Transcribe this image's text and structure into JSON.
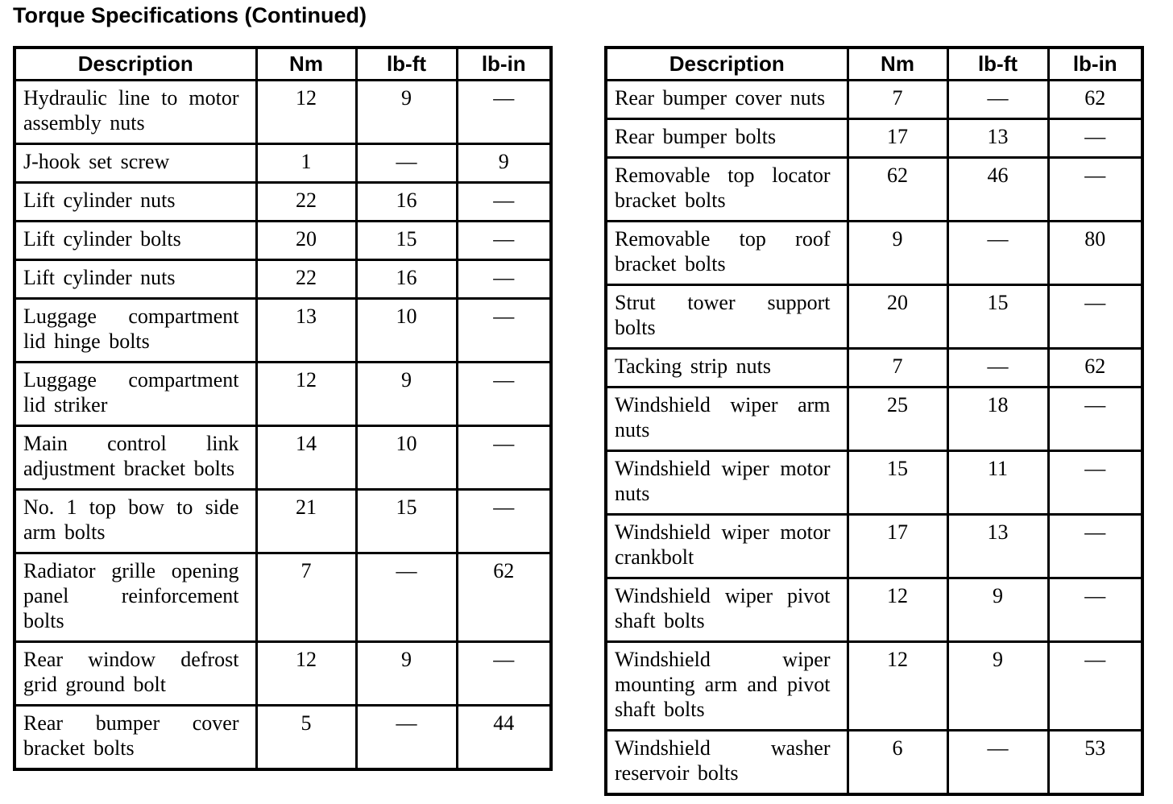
{
  "page_title": "Torque Specifications (Continued)",
  "colors": {
    "background": "#ffffff",
    "text": "#000000",
    "table_border": "#000000"
  },
  "tables": [
    {
      "id": "torque-table-left",
      "headers": [
        "Description",
        "Nm",
        "lb-ft",
        "lb-in"
      ],
      "rows": [
        {
          "description": "Hydraulic line to motor assembly nuts",
          "nm": "12",
          "lb_ft": "9",
          "lb_in": "—"
        },
        {
          "description": "J-hook set screw",
          "nm": "1",
          "lb_ft": "—",
          "lb_in": "9"
        },
        {
          "description": "Lift cylinder nuts",
          "nm": "22",
          "lb_ft": "16",
          "lb_in": "—"
        },
        {
          "description": "Lift cylinder bolts",
          "nm": "20",
          "lb_ft": "15",
          "lb_in": "—"
        },
        {
          "description": "Lift cylinder nuts",
          "nm": "22",
          "lb_ft": "16",
          "lb_in": "—"
        },
        {
          "description": "Luggage compartment lid hinge bolts",
          "nm": "13",
          "lb_ft": "10",
          "lb_in": "—"
        },
        {
          "description": "Luggage compartment lid striker",
          "nm": "12",
          "lb_ft": "9",
          "lb_in": "—"
        },
        {
          "description": "Main control link adjustment bracket bolts",
          "nm": "14",
          "lb_ft": "10",
          "lb_in": "—"
        },
        {
          "description": "No. 1 top bow to side arm bolts",
          "nm": "21",
          "lb_ft": "15",
          "lb_in": "—"
        },
        {
          "description": "Radiator grille opening panel reinforcement bolts",
          "nm": "7",
          "lb_ft": "—",
          "lb_in": "62"
        },
        {
          "description": "Rear window defrost grid ground bolt",
          "nm": "12",
          "lb_ft": "9",
          "lb_in": "—"
        },
        {
          "description": "Rear bumper cover bracket bolts",
          "nm": "5",
          "lb_ft": "—",
          "lb_in": "44"
        }
      ]
    },
    {
      "id": "torque-table-right",
      "headers": [
        "Description",
        "Nm",
        "lb-ft",
        "lb-in"
      ],
      "rows": [
        {
          "description": "Rear bumper cover nuts",
          "nm": "7",
          "lb_ft": "—",
          "lb_in": "62"
        },
        {
          "description": "Rear bumper bolts",
          "nm": "17",
          "lb_ft": "13",
          "lb_in": "—"
        },
        {
          "description": "Removable top locator bracket bolts",
          "nm": "62",
          "lb_ft": "46",
          "lb_in": "—"
        },
        {
          "description": "Removable top roof bracket bolts",
          "nm": "9",
          "lb_ft": "—",
          "lb_in": "80"
        },
        {
          "description": "Strut tower support bolts",
          "nm": "20",
          "lb_ft": "15",
          "lb_in": "—"
        },
        {
          "description": "Tacking strip nuts",
          "nm": "7",
          "lb_ft": "—",
          "lb_in": "62"
        },
        {
          "description": "Windshield wiper arm nuts",
          "nm": "25",
          "lb_ft": "18",
          "lb_in": "—"
        },
        {
          "description": "Windshield wiper motor nuts",
          "nm": "15",
          "lb_ft": "11",
          "lb_in": "—"
        },
        {
          "description": "Windshield wiper motor crankbolt",
          "nm": "17",
          "lb_ft": "13",
          "lb_in": "—"
        },
        {
          "description": "Windshield wiper pivot shaft bolts",
          "nm": "12",
          "lb_ft": "9",
          "lb_in": "—"
        },
        {
          "description": "Windshield wiper mounting arm and pivot shaft bolts",
          "nm": "12",
          "lb_ft": "9",
          "lb_in": "—"
        },
        {
          "description": "Windshield washer reservoir bolts",
          "nm": "6",
          "lb_ft": "—",
          "lb_in": "53"
        }
      ]
    }
  ]
}
